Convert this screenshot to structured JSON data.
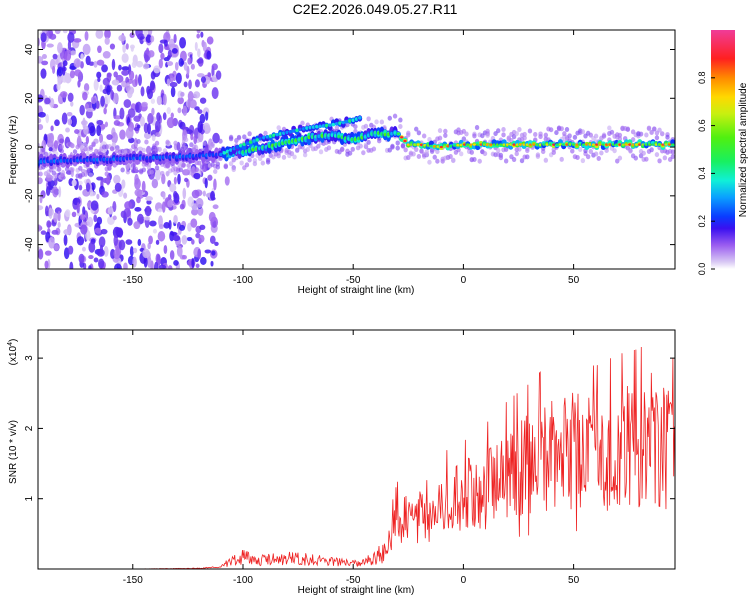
{
  "title": "C2E2.2026.049.05.27.R11",
  "chart_data": [
    {
      "type": "heatmap",
      "name": "spectrogram",
      "xlabel": "Height of straight line (km)",
      "ylabel": "Frequency (Hz)",
      "xlim": [
        -193,
        96
      ],
      "ylim": [
        -50,
        48
      ],
      "xticks": [
        -150,
        -100,
        -50,
        0,
        50
      ],
      "yticks": [
        -40,
        -20,
        0,
        20,
        40
      ],
      "colorbar": {
        "label": "Normalized spectral amplitude",
        "range": [
          0,
          1
        ],
        "ticks": [
          0.0,
          0.2,
          0.4,
          0.6,
          0.8
        ]
      },
      "ridge": {
        "x": [
          -193,
          -160,
          -130,
          -110,
          -100,
          -90,
          -80,
          -70,
          -60,
          -50,
          -45,
          -40,
          -35,
          -30,
          -25,
          -20,
          -10,
          0,
          20,
          40,
          60,
          80,
          96
        ],
        "y": [
          -6,
          -5,
          -4,
          -3,
          -2,
          0,
          2,
          4,
          5,
          3,
          4,
          6,
          5,
          6,
          1,
          1,
          0,
          1,
          1,
          1,
          1,
          1,
          1
        ]
      },
      "branch": {
        "x": [
          -110,
          -100,
          -90,
          -80,
          -70,
          -60,
          -55,
          -50,
          -47
        ],
        "y": [
          -3,
          1,
          4,
          6,
          8,
          9,
          10,
          11,
          12
        ]
      }
    },
    {
      "type": "line",
      "name": "snr",
      "xlabel": "Height of straight line (km)",
      "ylabel": "SNR (10 * v/v)",
      "multiplier_label": "(x10",
      "multiplier_exp": "4",
      "xlim": [
        -193,
        96
      ],
      "ylim": [
        0,
        3.4
      ],
      "xticks": [
        -150,
        -100,
        -50,
        0,
        50
      ],
      "yticks": [
        1,
        2,
        3
      ],
      "color": "#ee2222",
      "x": [
        -193,
        -150,
        -120,
        -110,
        -105,
        -100,
        -95,
        -90,
        -80,
        -70,
        -60,
        -50,
        -45,
        -40,
        -35,
        -32,
        -30,
        -25,
        -20,
        -15,
        -10,
        0,
        10,
        20,
        30,
        40,
        50,
        60,
        70,
        80,
        85,
        90,
        96
      ],
      "y": [
        0.0,
        0.0,
        0.01,
        0.03,
        0.15,
        0.2,
        0.16,
        0.15,
        0.18,
        0.16,
        0.12,
        0.1,
        0.12,
        0.2,
        0.3,
        0.6,
        0.75,
        0.85,
        0.8,
        0.75,
        1.0,
        1.1,
        1.25,
        1.45,
        1.6,
        1.8,
        1.8,
        1.75,
        1.85,
        1.9,
        2.0,
        1.9,
        1.8
      ]
    }
  ]
}
